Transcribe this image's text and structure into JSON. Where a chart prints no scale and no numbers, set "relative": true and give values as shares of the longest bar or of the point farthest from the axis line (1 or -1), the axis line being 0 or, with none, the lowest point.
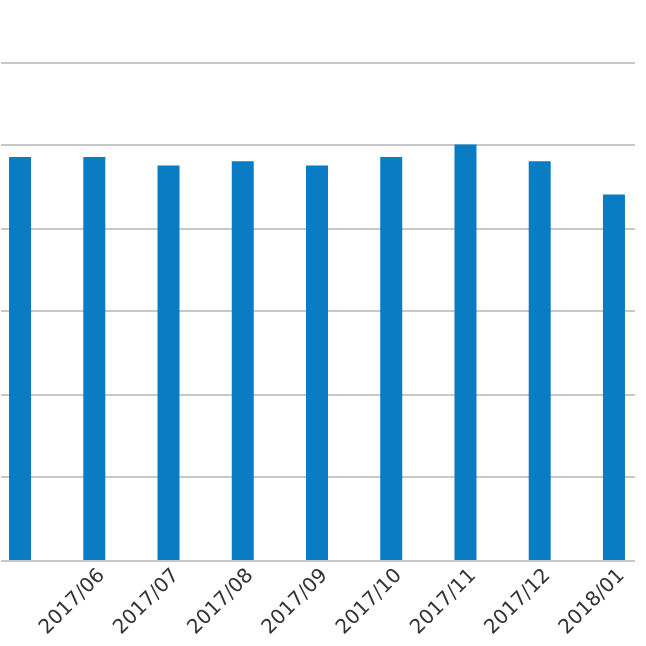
{
  "chart_data": {
    "type": "bar",
    "relative": true,
    "color": "#0a7cc4",
    "grid": "y",
    "categories": [
      null,
      "2017/06",
      "2017/07",
      "2017/08",
      "2017/09",
      "2017/10",
      "2017/11",
      "2017/12",
      "2018/01"
    ],
    "values": [
      0.97,
      0.97,
      0.95,
      0.96,
      0.95,
      0.97,
      1,
      0.96,
      0.88
    ]
  }
}
